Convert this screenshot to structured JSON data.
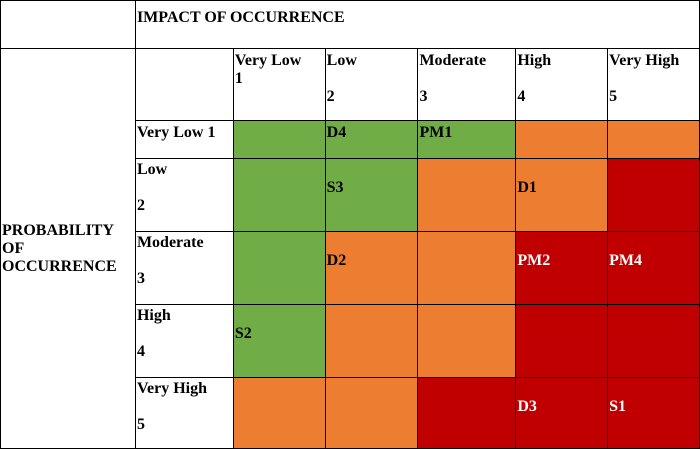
{
  "header": {
    "title": "IMPACT OF OCCURRENCE"
  },
  "probability_label": [
    "PROBABILITY",
    "OF",
    "OCCURRENCE"
  ],
  "impact_levels": [
    {
      "label": "Very Low",
      "score": "1"
    },
    {
      "label": "Low",
      "score": "2"
    },
    {
      "label": "Moderate",
      "score": "3"
    },
    {
      "label": "High",
      "score": "4"
    },
    {
      "label": "Very High",
      "score": "5"
    }
  ],
  "probability_levels": [
    {
      "label": "Very Low 1",
      "score": ""
    },
    {
      "label": "Low",
      "score": "2"
    },
    {
      "label": "Moderate",
      "score": "3"
    },
    {
      "label": "High",
      "score": "4"
    },
    {
      "label": "Very High",
      "score": "5"
    }
  ],
  "colors": {
    "green": "#70ad47",
    "orange": "#ed7d31",
    "red": "#c00000"
  },
  "matrix": [
    [
      {
        "color": "green",
        "text": ""
      },
      {
        "color": "green",
        "text": "D4"
      },
      {
        "color": "green",
        "text": "PM1"
      },
      {
        "color": "orange",
        "text": ""
      },
      {
        "color": "orange",
        "text": ""
      }
    ],
    [
      {
        "color": "green",
        "text": ""
      },
      {
        "color": "green",
        "text": "S3"
      },
      {
        "color": "orange",
        "text": ""
      },
      {
        "color": "orange",
        "text": "D1"
      },
      {
        "color": "red",
        "text": ""
      }
    ],
    [
      {
        "color": "green",
        "text": ""
      },
      {
        "color": "orange",
        "text": "D2"
      },
      {
        "color": "orange",
        "text": ""
      },
      {
        "color": "red",
        "text": "PM2"
      },
      {
        "color": "red",
        "text": "PM4"
      }
    ],
    [
      {
        "color": "green",
        "text": "S2"
      },
      {
        "color": "orange",
        "text": ""
      },
      {
        "color": "orange",
        "text": ""
      },
      {
        "color": "red",
        "text": ""
      },
      {
        "color": "red",
        "text": ""
      }
    ],
    [
      {
        "color": "orange",
        "text": ""
      },
      {
        "color": "orange",
        "text": ""
      },
      {
        "color": "red",
        "text": ""
      },
      {
        "color": "red",
        "text": "D3"
      },
      {
        "color": "red",
        "text": "S1"
      }
    ]
  ]
}
